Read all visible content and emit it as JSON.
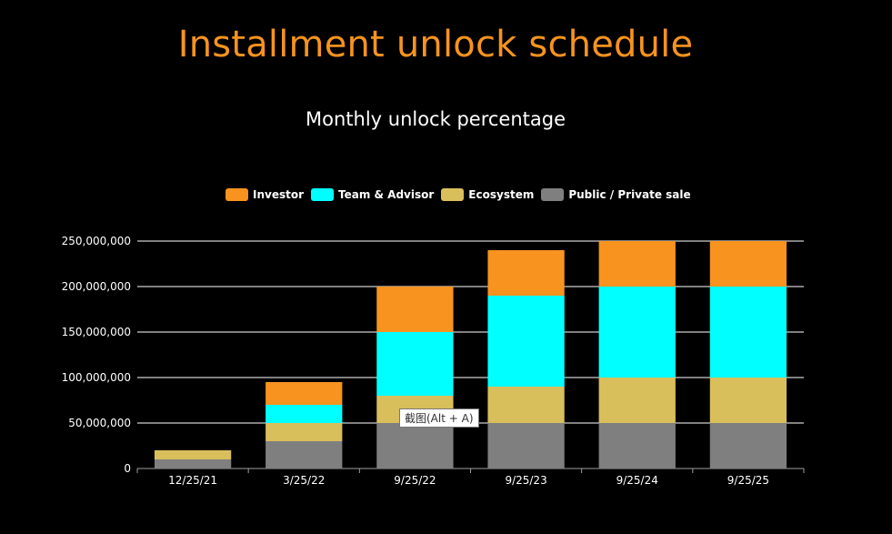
{
  "page_title": "Installment unlock schedule",
  "tooltip": "截图(Alt + A)",
  "chart_data": {
    "type": "bar",
    "stacked": true,
    "title": "Monthly unlock percentage",
    "categories": [
      "12/25/21",
      "3/25/22",
      "9/25/22",
      "9/25/23",
      "9/25/24",
      "9/25/25"
    ],
    "series": [
      {
        "name": "Public / Private sale",
        "color": "#7f7f7f",
        "values": [
          10000000,
          30000000,
          50000000,
          50000000,
          50000000,
          50000000
        ]
      },
      {
        "name": "Ecosystem",
        "color": "#d9be5c",
        "values": [
          10000000,
          20000000,
          30000000,
          40000000,
          50000000,
          50000000
        ]
      },
      {
        "name": "Team & Advisor",
        "color": "#00ffff",
        "values": [
          0,
          20000000,
          70000000,
          100000000,
          100000000,
          100000000
        ]
      },
      {
        "name": "Investor",
        "color": "#f7931e",
        "values": [
          0,
          25000000,
          50000000,
          50000000,
          50000000,
          50000000
        ]
      }
    ],
    "legend_order": [
      "Investor",
      "Team & Advisor",
      "Ecosystem",
      "Public / Private sale"
    ],
    "y_ticks": [
      "0",
      "50,000,000",
      "100,000,000",
      "150,000,000",
      "200,000,000",
      "250,000,000"
    ],
    "ylim": [
      0,
      250000000
    ],
    "xlabel": "",
    "ylabel": "",
    "grid": true
  }
}
